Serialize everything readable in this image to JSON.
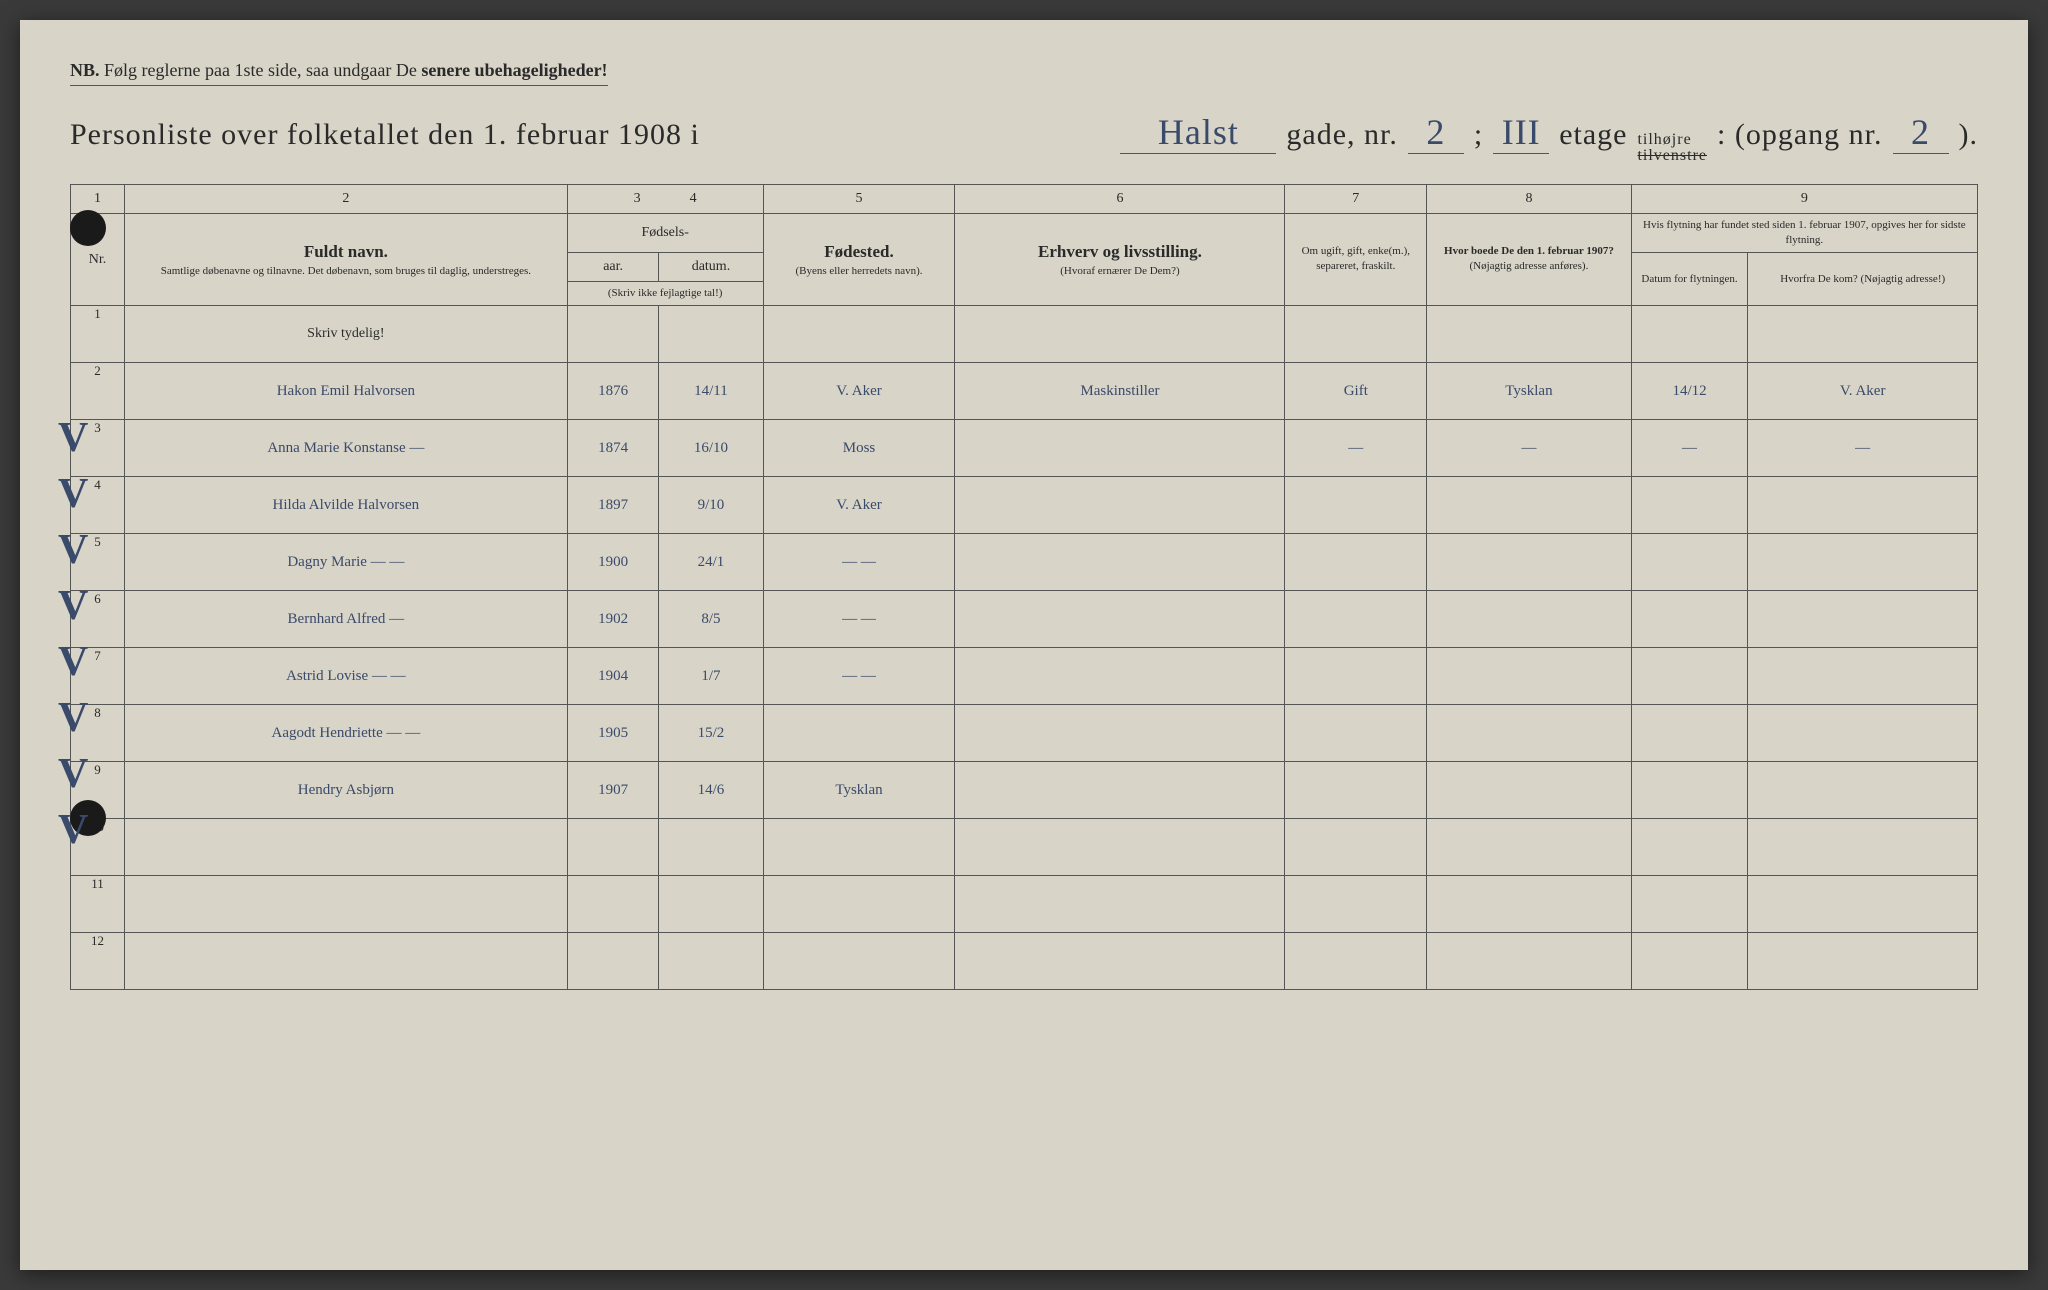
{
  "header": {
    "nb_prefix": "NB.",
    "nb_text_1": "Følg reglerne paa 1ste side, saa undgaar De ",
    "nb_text_2": "senere ubehageligheder!",
    "title_prefix": "Personliste over folketallet den 1. februar 1908 i",
    "street_name": "Halst",
    "gade_label": "gade, nr.",
    "gade_nr": "2",
    "semicolon": ";",
    "etage": "III",
    "etage_label": "etage",
    "tilhojre": "tilhøjre",
    "tilvenstre": "tilvenstre",
    "colon_opgang": ": (opgang nr.",
    "opgang_nr": "2",
    "closing": ")."
  },
  "column_numbers": [
    "1",
    "2",
    "3",
    "4",
    "5",
    "6",
    "7",
    "8",
    "9"
  ],
  "columns": {
    "nr": "Nr.",
    "fuldt_navn": "Fuldt navn.",
    "fuldt_navn_sub": "Samtlige døbenavne og tilnavne. Det døbenavn, som bruges til daglig, understreges.",
    "fodsels": "Fødsels-",
    "aar": "aar.",
    "datum": "datum.",
    "skriv_ikke": "(Skriv ikke fejlagtige tal!)",
    "fodested": "Fødested.",
    "fodested_sub": "(Byens eller herredets navn).",
    "erhverv": "Erhverv og livsstilling.",
    "erhverv_sub": "(Hvoraf ernærer De Dem?)",
    "om_ugift": "Om ugift, gift, enke(m.), separeret, fraskilt.",
    "hvor_boede": "Hvor boede De den 1. februar 1907?",
    "hvor_boede_sub": "(Nøjagtig adresse anføres).",
    "flytning": "Hvis flytning har fundet sted siden 1. februar 1907, opgives her for sidste flytning.",
    "datum_flyt": "Datum for flytningen.",
    "hvorfra": "Hvorfra De kom? (Nøjagtig adresse!)"
  },
  "skriv_tydelig": "Skriv tydelig!",
  "rows": [
    {
      "nr": "1",
      "name": "",
      "year": "",
      "date": "",
      "place": "",
      "occupation": "",
      "status": "",
      "prev": "",
      "movedate": "",
      "fromwhere": "",
      "check": false
    },
    {
      "nr": "2",
      "name": "Hakon Emil Halvorsen",
      "year": "1876",
      "date": "14/11",
      "place": "V. Aker",
      "occupation": "Maskinstiller",
      "status": "Gift",
      "prev": "Tysklan",
      "movedate": "14/12",
      "fromwhere": "V. Aker",
      "check": true
    },
    {
      "nr": "3",
      "name": "Anna Marie Konstanse  —",
      "year": "1874",
      "date": "16/10",
      "place": "Moss",
      "occupation": "",
      "status": "—",
      "prev": "—",
      "movedate": "—",
      "fromwhere": "—",
      "check": true
    },
    {
      "nr": "4",
      "name": "Hilda Alvilde Halvorsen",
      "year": "1897",
      "date": "9/10",
      "place": "V. Aker",
      "occupation": "",
      "status": "",
      "prev": "",
      "movedate": "",
      "fromwhere": "",
      "check": true
    },
    {
      "nr": "5",
      "name": "Dagny Marie  —  —",
      "year": "1900",
      "date": "24/1",
      "place": "—  —",
      "occupation": "",
      "status": "",
      "prev": "",
      "movedate": "",
      "fromwhere": "",
      "check": true
    },
    {
      "nr": "6",
      "name": "Bernhard Alfred  —",
      "year": "1902",
      "date": "8/5",
      "place": "—  —",
      "occupation": "",
      "status": "",
      "prev": "",
      "movedate": "",
      "fromwhere": "",
      "check": true
    },
    {
      "nr": "7",
      "name": "Astrid Lovise  —  —",
      "year": "1904",
      "date": "1/7",
      "place": "—  —",
      "occupation": "",
      "status": "",
      "prev": "",
      "movedate": "",
      "fromwhere": "",
      "check": true
    },
    {
      "nr": "8",
      "name": "Aagodt Hendriette  —  —",
      "year": "1905",
      "date": "15/2",
      "place": "",
      "occupation": "",
      "status": "",
      "prev": "",
      "movedate": "",
      "fromwhere": "",
      "check": true
    },
    {
      "nr": "9",
      "name": "Hendry Asbjørn",
      "year": "1907",
      "date": "14/6",
      "place": "Tysklan",
      "occupation": "",
      "status": "",
      "prev": "",
      "movedate": "",
      "fromwhere": "",
      "check": true
    },
    {
      "nr": "10",
      "name": "",
      "year": "",
      "date": "",
      "place": "",
      "occupation": "",
      "status": "",
      "prev": "",
      "movedate": "",
      "fromwhere": "",
      "check": false
    },
    {
      "nr": "11",
      "name": "",
      "year": "",
      "date": "",
      "place": "",
      "occupation": "",
      "status": "",
      "prev": "",
      "movedate": "",
      "fromwhere": "",
      "check": false
    },
    {
      "nr": "12",
      "name": "",
      "year": "",
      "date": "",
      "place": "",
      "occupation": "",
      "status": "",
      "prev": "",
      "movedate": "",
      "fromwhere": "",
      "check": false
    }
  ],
  "styling": {
    "paper_color": "#d8d4c8",
    "ink_color": "#2a2a2a",
    "handwriting_color": "#3a4a6a",
    "border_color": "#555555"
  }
}
